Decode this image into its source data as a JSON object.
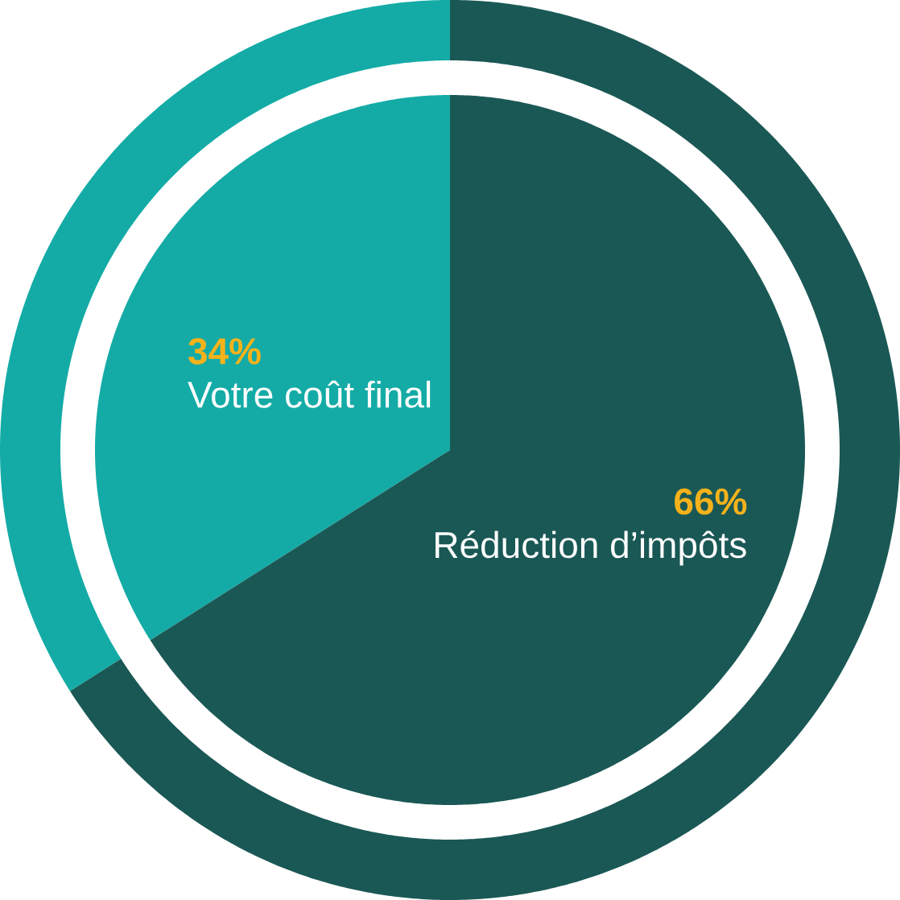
{
  "chart_data": {
    "type": "pie",
    "categories": [
      "Votre coût final",
      "Réduction d’impôts"
    ],
    "values": [
      34,
      66
    ],
    "colors": [
      "#14aba6",
      "#1a5855"
    ],
    "value_labels": [
      "34%",
      "66%"
    ]
  }
}
